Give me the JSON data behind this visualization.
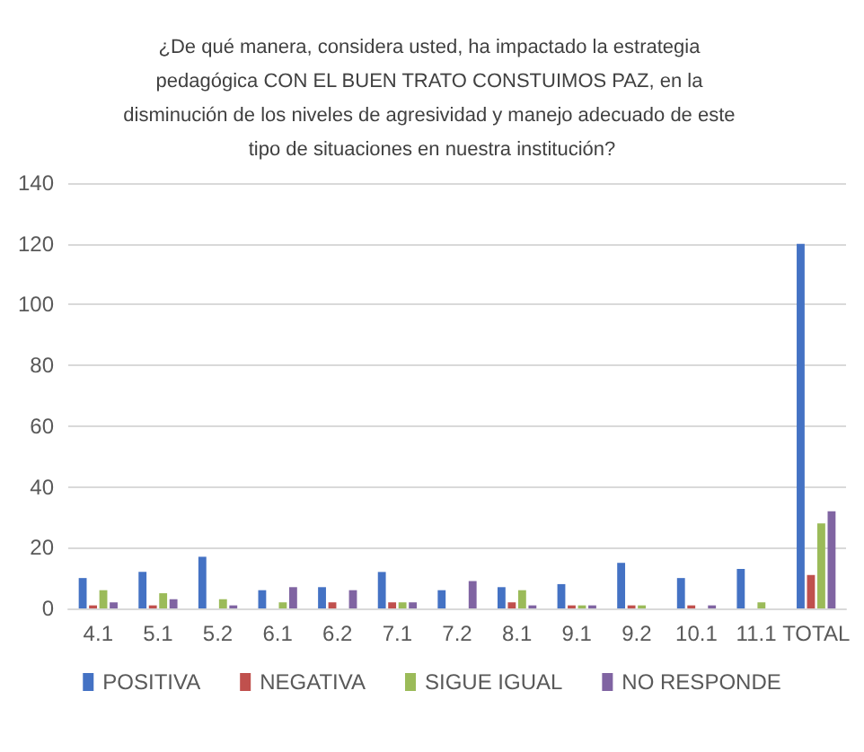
{
  "chart_data": {
    "type": "bar",
    "title": "¿De qué manera, considera usted, ha impactado la estrategia pedagógica CON EL BUEN TRATO CONSTUIMOS PAZ, en la disminución de los niveles de agresividad y manejo adecuado de este tipo de situaciones en nuestra institución?",
    "categories": [
      "4.1",
      "5.1",
      "5.2",
      "6.1",
      "6.2",
      "7.1",
      "7.2",
      "8.1",
      "9.1",
      "9.2",
      "10.1",
      "11.1",
      "TOTAL"
    ],
    "series": [
      {
        "name": "POSITIVA",
        "color": "#4472c4",
        "values": [
          10,
          12,
          17,
          6,
          7,
          12,
          6,
          7,
          8,
          15,
          10,
          13,
          120
        ]
      },
      {
        "name": "NEGATIVA",
        "color": "#c0504d",
        "values": [
          1,
          1,
          0,
          0,
          2,
          2,
          0,
          2,
          1,
          1,
          1,
          0,
          11
        ]
      },
      {
        "name": "SIGUE IGUAL",
        "color": "#9bbb59",
        "values": [
          6,
          5,
          3,
          2,
          0,
          2,
          0,
          6,
          1,
          1,
          0,
          2,
          28
        ]
      },
      {
        "name": "NO RESPONDE",
        "color": "#8064a2",
        "values": [
          2,
          3,
          1,
          7,
          6,
          2,
          9,
          1,
          1,
          0,
          1,
          0,
          32
        ]
      }
    ],
    "ylim": [
      0,
      140
    ],
    "yticks": [
      0,
      20,
      40,
      60,
      80,
      100,
      120,
      140
    ],
    "grid": "y",
    "legend": "bottom"
  }
}
